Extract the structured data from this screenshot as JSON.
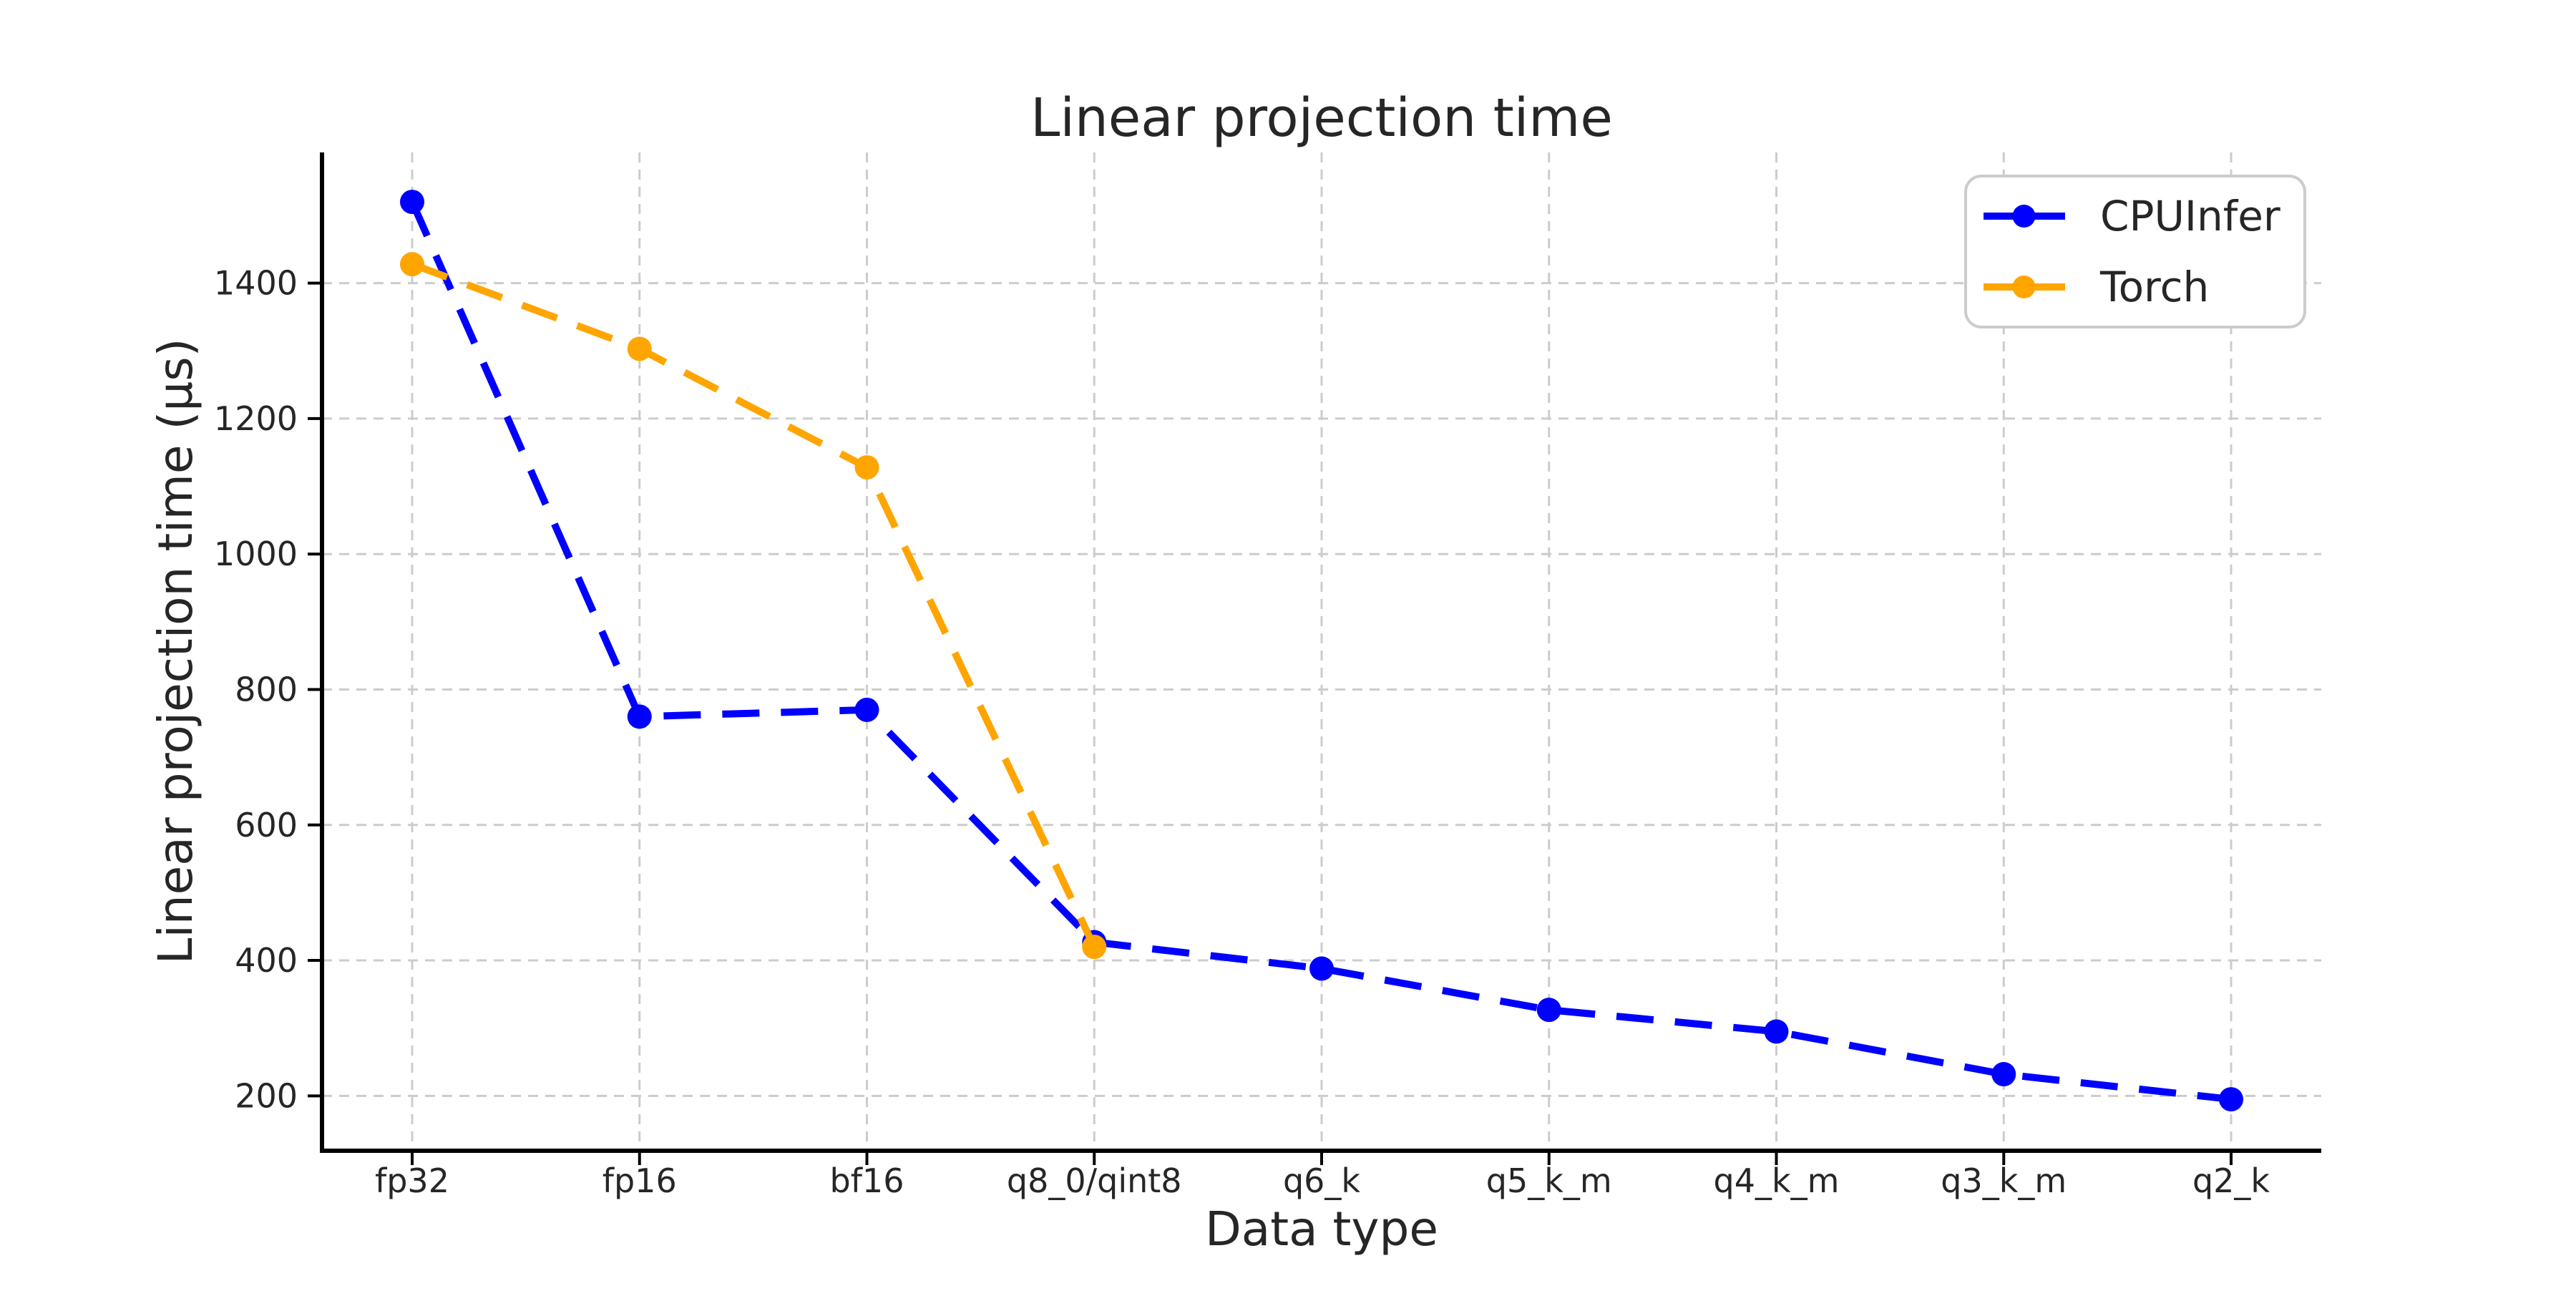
{
  "figure": {
    "background": "#ffffff"
  },
  "chart_data": {
    "type": "line",
    "title": "Linear projection time",
    "xlabel": "Data type",
    "ylabel": "Linear projection time (µs)",
    "categories": [
      "fp32",
      "fp16",
      "bf16",
      "q8_0/qint8",
      "q6_k",
      "q5_k_m",
      "q4_k_m",
      "q3_k_m",
      "q2_k"
    ],
    "series": [
      {
        "name": "CPUInfer",
        "color": "#0000ff",
        "linestyle": "dashed",
        "marker": "circle",
        "values": [
          1520,
          760,
          770,
          427,
          388,
          327,
          295,
          232,
          195
        ]
      },
      {
        "name": "Torch",
        "color": "#ffa500",
        "linestyle": "dashed",
        "marker": "circle",
        "values": [
          1428,
          1303,
          1128,
          420,
          null,
          null,
          null,
          null,
          null
        ]
      }
    ],
    "yticks": [
      200,
      400,
      600,
      800,
      1000,
      1200,
      1400
    ],
    "ylim": [
      119,
      1593
    ],
    "grid": true,
    "grid_style": "dashed",
    "grid_color": "#cccccc",
    "spine_color": "#000000",
    "text_color": "#262626",
    "legend_position": "upper right",
    "legend_border_color": "#cccccc"
  }
}
